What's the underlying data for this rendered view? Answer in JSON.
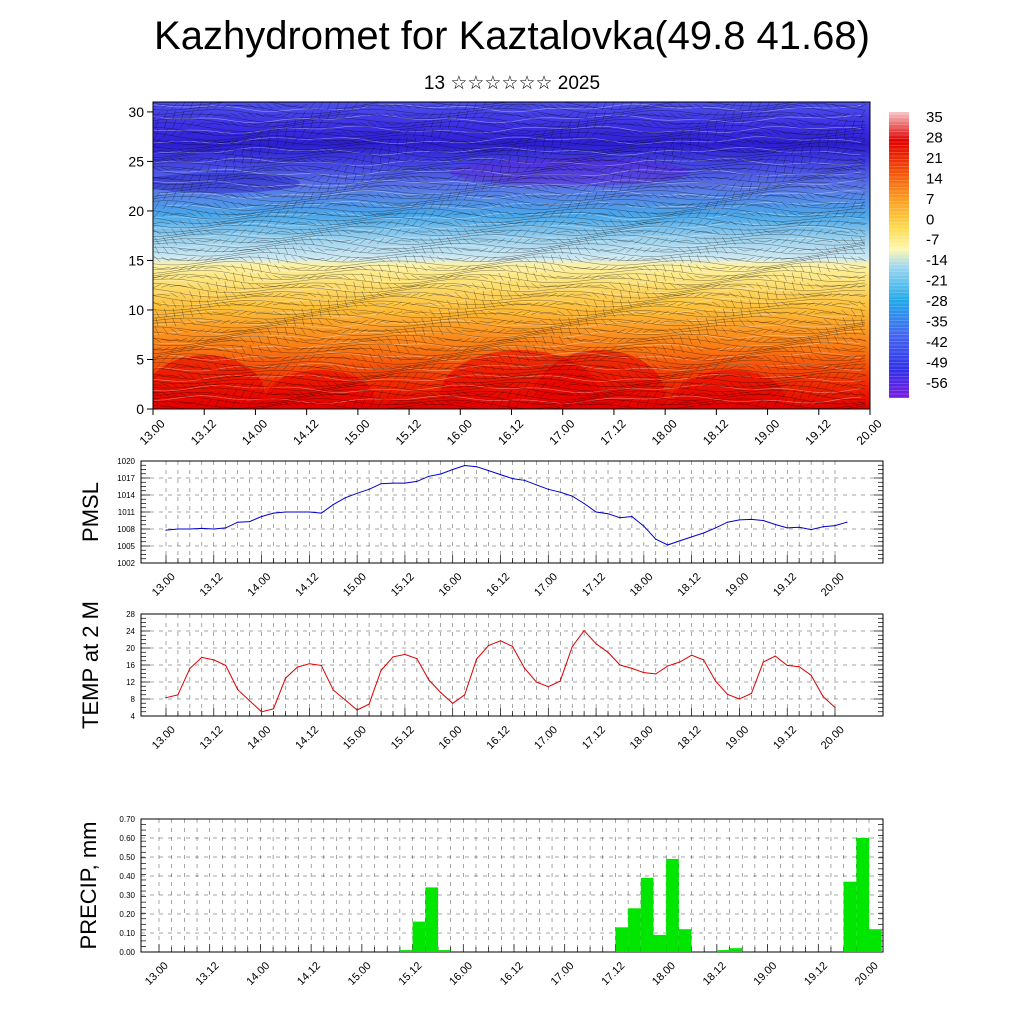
{
  "title": "Kazhydromet for Kaztalovka(49.8 41.68)",
  "subtitle": "13 ☆☆☆☆☆☆ 2025",
  "time_labels": [
    "13.00",
    "13.12",
    "14.00",
    "14.12",
    "15.00",
    "15.12",
    "16.00",
    "16.12",
    "17.00",
    "17.12",
    "18.00",
    "18.12",
    "19.00",
    "19.12",
    "20.00"
  ],
  "chart_data": [
    {
      "type": "heatmap",
      "name": "temperature_cross_section",
      "x": [
        "13.00",
        "13.12",
        "14.00",
        "14.12",
        "15.00",
        "15.12",
        "16.00",
        "16.12",
        "17.00",
        "17.12",
        "18.00",
        "18.12",
        "19.00",
        "19.12",
        "20.00"
      ],
      "y_ticks": [
        0,
        5,
        10,
        15,
        20,
        25,
        30
      ],
      "ylim": [
        0,
        31
      ],
      "colorbar_labels": [
        "35",
        "28",
        "21",
        "14",
        "7",
        "0",
        "-7",
        "-14",
        "-21",
        "-28",
        "-35",
        "-42",
        "-49",
        "-56"
      ],
      "colorbar_range": [
        -63,
        42
      ],
      "colors": {
        "hot": "#e80000",
        "orange": "#f77a12",
        "yellow": "#fde877",
        "light_blue": "#bfe4f2",
        "cyan": "#22a7e6",
        "blue": "#3a3ae0",
        "violet": "#7020d8",
        "top_light": "#f3b5b5"
      }
    },
    {
      "type": "line",
      "ylabel": "PMSL",
      "color": "#0000cc",
      "y_ticks": [
        1002,
        1005,
        1008,
        1011,
        1014,
        1017,
        1020
      ],
      "ylim": [
        1002,
        1020
      ],
      "x_start": 13.0,
      "x_step": 0.125,
      "values": [
        1007.8,
        1008.0,
        1008.0,
        1008.1,
        1008.0,
        1008.2,
        1009.2,
        1009.3,
        1010.2,
        1010.8,
        1011.0,
        1011.0,
        1011.0,
        1010.8,
        1012.3,
        1013.5,
        1014.3,
        1015.0,
        1016.0,
        1016.1,
        1016.1,
        1016.4,
        1017.3,
        1017.7,
        1018.5,
        1019.2,
        1019.0,
        1018.3,
        1017.6,
        1016.9,
        1016.6,
        1015.8,
        1015.0,
        1014.5,
        1013.8,
        1012.5,
        1011.0,
        1010.7,
        1010.0,
        1010.2,
        1008.5,
        1006.2,
        1005.2,
        1005.9,
        1006.6,
        1007.3,
        1008.2,
        1009.2,
        1009.6,
        1009.7,
        1009.5,
        1008.8,
        1008.2,
        1008.3,
        1007.9,
        1008.4,
        1008.6,
        1009.2
      ]
    },
    {
      "type": "line",
      "ylabel": "TEMP at 2 M",
      "color": "#dd0000",
      "y_ticks": [
        4,
        8,
        12,
        16,
        20,
        24,
        28
      ],
      "ylim": [
        4,
        28
      ],
      "x_start": 13.0,
      "x_step": 0.125,
      "values": [
        8.3,
        9.0,
        15.2,
        17.8,
        17.2,
        15.9,
        10.2,
        7.6,
        5.0,
        5.7,
        12.9,
        15.5,
        16.3,
        15.9,
        10.1,
        7.8,
        5.4,
        6.8,
        14.7,
        17.9,
        18.5,
        17.5,
        12.5,
        9.5,
        7.0,
        9.0,
        17.4,
        20.6,
        21.7,
        20.4,
        15.3,
        12.0,
        10.9,
        12.2,
        20.3,
        24.1,
        21.0,
        19.0,
        16.0,
        15.2,
        14.2,
        13.9,
        15.8,
        16.7,
        18.3,
        17.2,
        12.2,
        9.1,
        8.0,
        9.3,
        16.7,
        18.1,
        15.9,
        15.6,
        13.6,
        8.6,
        6.0
      ]
    },
    {
      "type": "bar",
      "ylabel": "PRECIP, mm",
      "color": "#00e600",
      "y_tick_labels": [
        "0.00",
        "0.10",
        "0.20",
        "0.30",
        "0.40",
        "0.50",
        "0.60",
        "0.70"
      ],
      "ylim": [
        0,
        0.7
      ],
      "x_start": 13.0,
      "x_step": 0.125,
      "values": [
        0,
        0,
        0,
        0,
        0,
        0,
        0,
        0,
        0,
        0,
        0,
        0,
        0,
        0,
        0,
        0,
        0,
        0,
        0,
        0.01,
        0.16,
        0.34,
        0.01,
        0,
        0,
        0,
        0,
        0,
        0,
        0,
        0,
        0,
        0,
        0,
        0,
        0,
        0.13,
        0.23,
        0.39,
        0.09,
        0.49,
        0.12,
        0,
        0,
        0.01,
        0.02,
        0,
        0,
        0,
        0,
        0,
        0,
        0,
        0,
        0.37,
        0.6,
        0.12,
        0
      ]
    }
  ]
}
